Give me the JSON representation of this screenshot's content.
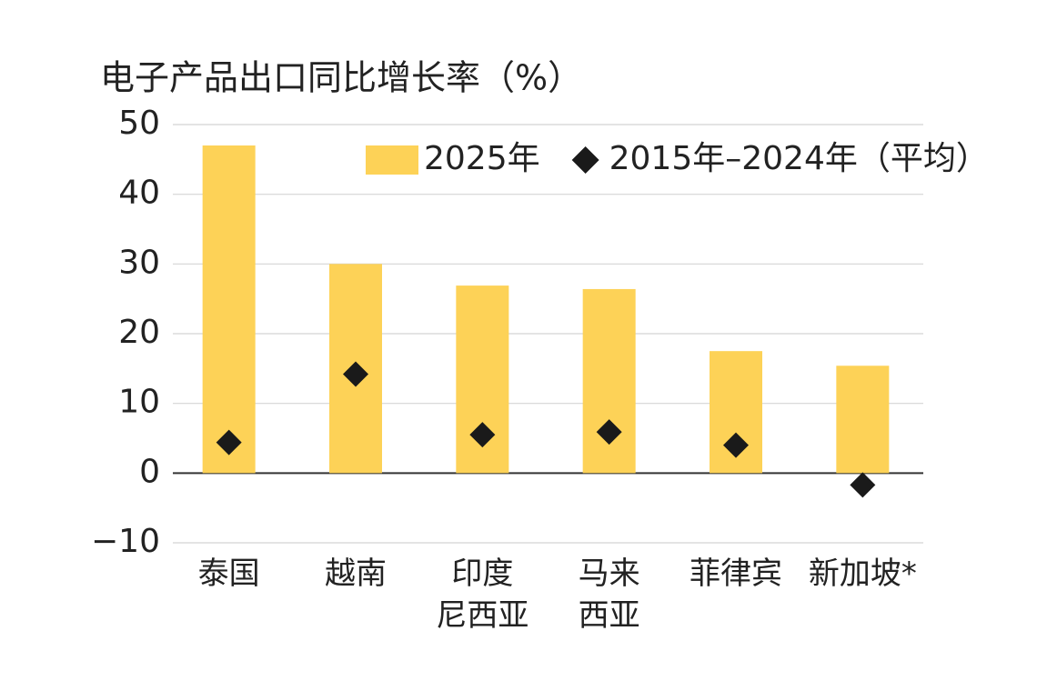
{
  "chart_data": {
    "type": "bar",
    "title": "电子产品出口同比增长率（%）",
    "categories": [
      "泰国",
      "越南",
      "印度\n尼西亚",
      "马来\n西亚",
      "菲律宾",
      "新加坡*"
    ],
    "series": [
      {
        "name": "2025年",
        "type": "bar",
        "color": "#fdd257",
        "values": [
          47.0,
          30.0,
          26.9,
          26.4,
          17.5,
          15.4
        ]
      },
      {
        "name": "2015年–2024年（平均）",
        "type": "scatter",
        "marker": "diamond",
        "color": "#1a1a1a",
        "values": [
          4.4,
          14.2,
          5.5,
          5.9,
          4.0,
          -1.7
        ]
      }
    ],
    "ylim": [
      -10,
      50
    ],
    "yticks": [
      {
        "value": -10,
        "label": "−10"
      },
      0,
      10,
      20,
      30,
      40,
      50
    ],
    "grid": true,
    "legend": "top-right"
  }
}
